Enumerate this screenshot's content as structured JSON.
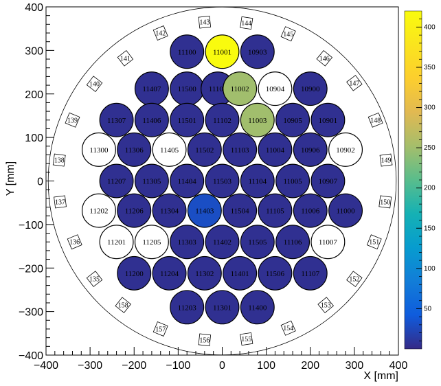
{
  "chart_data": {
    "type": "heatmap",
    "title": "",
    "xlabel": "X [mm]",
    "ylabel": "Y [mm]",
    "xlim": [
      -400,
      400
    ],
    "ylim": [
      -400,
      400
    ],
    "x_ticks": [
      "−400",
      "−300",
      "−200",
      "−100",
      "0",
      "100",
      "200",
      "300",
      "400"
    ],
    "y_ticks": [
      "−400",
      "−300",
      "−200",
      "−100",
      "0",
      "100",
      "200",
      "300",
      "400"
    ],
    "colorbar": {
      "min": 0,
      "max": 420,
      "ticks": [
        50,
        100,
        150,
        200,
        250,
        300,
        350,
        400
      ]
    },
    "cell_radius_mm": 40,
    "outer_circle_radius_mm": 395,
    "cells": [
      {
        "id": "11100",
        "x": -80,
        "y": 297,
        "value": 5
      },
      {
        "id": "11001",
        "x": 0,
        "y": 297,
        "value": 420
      },
      {
        "id": "10903",
        "x": 80,
        "y": 297,
        "value": 5
      },
      {
        "id": "11407",
        "x": -160,
        "y": 212,
        "value": 5
      },
      {
        "id": "11500",
        "x": -80,
        "y": 212,
        "value": 5
      },
      {
        "id": "11101",
        "x": -10,
        "y": 212,
        "value": 5
      },
      {
        "id": "11002",
        "x": 40,
        "y": 212,
        "value": 250
      },
      {
        "id": "10904",
        "x": 120,
        "y": 212,
        "value": null
      },
      {
        "id": "10900",
        "x": 200,
        "y": 212,
        "value": 5
      },
      {
        "id": "11307",
        "x": -240,
        "y": 140,
        "value": 5
      },
      {
        "id": "11406",
        "x": -160,
        "y": 140,
        "value": 5
      },
      {
        "id": "11501",
        "x": -80,
        "y": 140,
        "value": 5
      },
      {
        "id": "11102",
        "x": 0,
        "y": 140,
        "value": 5
      },
      {
        "id": "11003",
        "x": 80,
        "y": 140,
        "value": 250
      },
      {
        "id": "10905",
        "x": 160,
        "y": 140,
        "value": 5
      },
      {
        "id": "10901",
        "x": 240,
        "y": 140,
        "value": 5
      },
      {
        "id": "11300",
        "x": -280,
        "y": 72,
        "value": null
      },
      {
        "id": "11306",
        "x": -200,
        "y": 72,
        "value": 5
      },
      {
        "id": "11405",
        "x": -120,
        "y": 72,
        "value": null
      },
      {
        "id": "11502",
        "x": -40,
        "y": 72,
        "value": 5
      },
      {
        "id": "11103",
        "x": 40,
        "y": 72,
        "value": 5
      },
      {
        "id": "11004",
        "x": 120,
        "y": 72,
        "value": 5
      },
      {
        "id": "10906",
        "x": 200,
        "y": 72,
        "value": 5
      },
      {
        "id": "10902",
        "x": 280,
        "y": 72,
        "value": null
      },
      {
        "id": "11207",
        "x": -240,
        "y": 0,
        "value": 5
      },
      {
        "id": "11305",
        "x": -160,
        "y": 0,
        "value": 5
      },
      {
        "id": "11404",
        "x": -80,
        "y": 0,
        "value": 5
      },
      {
        "id": "11503",
        "x": 0,
        "y": 0,
        "value": 5
      },
      {
        "id": "11104",
        "x": 80,
        "y": 0,
        "value": 5
      },
      {
        "id": "11005",
        "x": 160,
        "y": 0,
        "value": 5
      },
      {
        "id": "10907",
        "x": 240,
        "y": 0,
        "value": 5
      },
      {
        "id": "11202",
        "x": -280,
        "y": -68,
        "value": null
      },
      {
        "id": "11206",
        "x": -200,
        "y": -68,
        "value": 5
      },
      {
        "id": "11304",
        "x": -120,
        "y": -68,
        "value": 5
      },
      {
        "id": "11403",
        "x": -40,
        "y": -68,
        "value": 30
      },
      {
        "id": "11504",
        "x": 40,
        "y": -68,
        "value": 5
      },
      {
        "id": "11105",
        "x": 120,
        "y": -68,
        "value": 5
      },
      {
        "id": "11006",
        "x": 200,
        "y": -68,
        "value": 5
      },
      {
        "id": "11000",
        "x": 280,
        "y": -68,
        "value": 5
      },
      {
        "id": "11201",
        "x": -240,
        "y": -140,
        "value": null
      },
      {
        "id": "11205",
        "x": -160,
        "y": -140,
        "value": null
      },
      {
        "id": "11303",
        "x": -80,
        "y": -140,
        "value": 5
      },
      {
        "id": "11402",
        "x": 0,
        "y": -140,
        "value": 5
      },
      {
        "id": "11505",
        "x": 80,
        "y": -140,
        "value": 5
      },
      {
        "id": "11106",
        "x": 160,
        "y": -140,
        "value": 5
      },
      {
        "id": "11007",
        "x": 240,
        "y": -140,
        "value": null
      },
      {
        "id": "11200",
        "x": -200,
        "y": -212,
        "value": 5
      },
      {
        "id": "11204",
        "x": -120,
        "y": -212,
        "value": 5
      },
      {
        "id": "11302",
        "x": -40,
        "y": -212,
        "value": 5
      },
      {
        "id": "11401",
        "x": 40,
        "y": -212,
        "value": 5
      },
      {
        "id": "11506",
        "x": 120,
        "y": -212,
        "value": 5
      },
      {
        "id": "11107",
        "x": 200,
        "y": -212,
        "value": 5
      },
      {
        "id": "11203",
        "x": -80,
        "y": -290,
        "value": 5
      },
      {
        "id": "11301",
        "x": 0,
        "y": -290,
        "value": 5
      },
      {
        "id": "11400",
        "x": 80,
        "y": -290,
        "value": 5
      }
    ],
    "pmt_labels": [
      {
        "id": "143",
        "x": -40,
        "y": 365
      },
      {
        "id": "144",
        "x": 55,
        "y": 363
      },
      {
        "id": "142",
        "x": -140,
        "y": 340
      },
      {
        "id": "145",
        "x": 150,
        "y": 338
      },
      {
        "id": "141",
        "x": -220,
        "y": 282
      },
      {
        "id": "146",
        "x": 232,
        "y": 282
      },
      {
        "id": "140",
        "x": -290,
        "y": 223
      },
      {
        "id": "147",
        "x": 300,
        "y": 225
      },
      {
        "id": "139",
        "x": -340,
        "y": 140
      },
      {
        "id": "148",
        "x": 348,
        "y": 140
      },
      {
        "id": "138",
        "x": -370,
        "y": 48
      },
      {
        "id": "149",
        "x": 372,
        "y": 48
      },
      {
        "id": "137",
        "x": -368,
        "y": -48
      },
      {
        "id": "150",
        "x": 370,
        "y": -48
      },
      {
        "id": "136",
        "x": -335,
        "y": -140
      },
      {
        "id": "151",
        "x": 345,
        "y": -140
      },
      {
        "id": "135",
        "x": -290,
        "y": -225
      },
      {
        "id": "152",
        "x": 300,
        "y": -225
      },
      {
        "id": "158",
        "x": -225,
        "y": -285
      },
      {
        "id": "153",
        "x": 235,
        "y": -285
      },
      {
        "id": "157",
        "x": -140,
        "y": -340
      },
      {
        "id": "154",
        "x": 150,
        "y": -338
      },
      {
        "id": "156",
        "x": -40,
        "y": -365
      },
      {
        "id": "155",
        "x": 55,
        "y": -363
      }
    ]
  }
}
